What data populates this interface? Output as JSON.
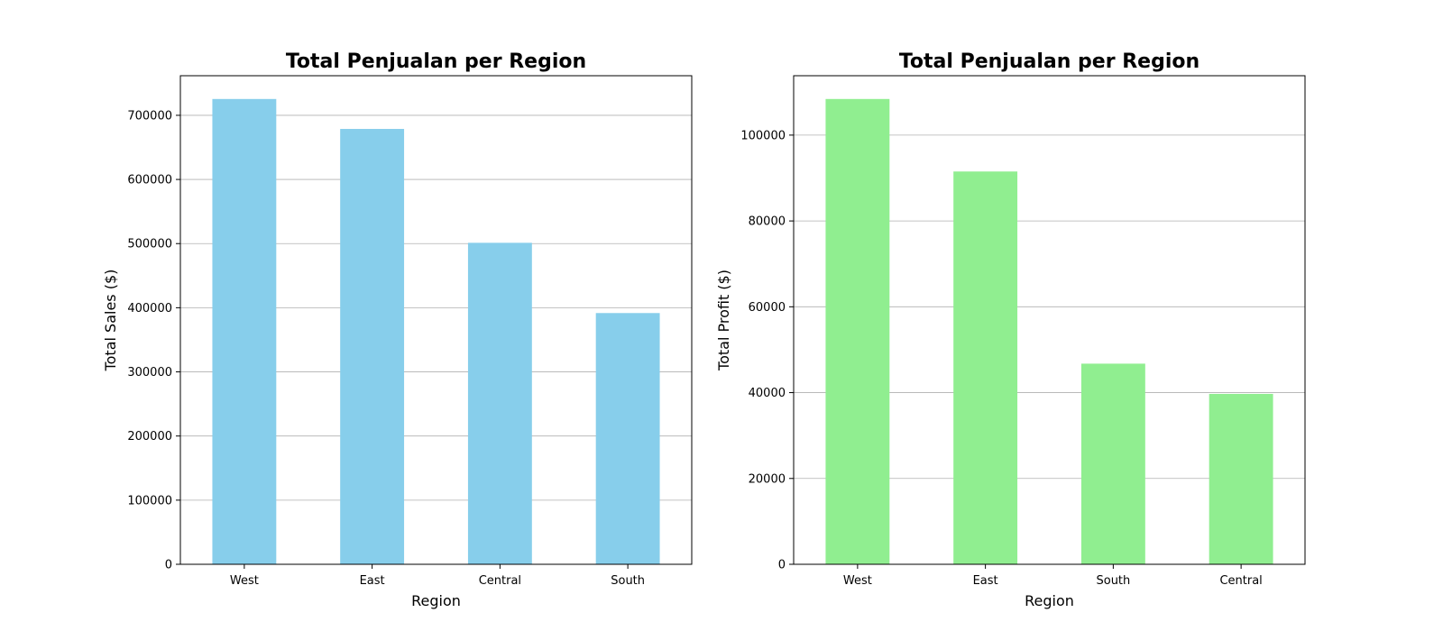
{
  "chart_data": [
    {
      "type": "bar",
      "title": "Total Penjualan per Region",
      "xlabel": "Region",
      "ylabel": "Total Sales ($)",
      "categories": [
        "West",
        "East",
        "Central",
        "South"
      ],
      "values": [
        725458,
        678781,
        501240,
        391722
      ],
      "ylim": [
        0,
        761731
      ],
      "yticks": [
        0,
        100000,
        200000,
        300000,
        400000,
        500000,
        600000,
        700000
      ],
      "grid": "y",
      "color": "#87ceeb"
    },
    {
      "type": "bar",
      "title": "Total Penjualan per Region",
      "xlabel": "Region",
      "ylabel": "Total Profit ($)",
      "categories": [
        "West",
        "East",
        "South",
        "Central"
      ],
      "values": [
        108418,
        91523,
        46750,
        39706
      ],
      "ylim": [
        0,
        113839
      ],
      "yticks": [
        0,
        20000,
        40000,
        60000,
        80000,
        100000
      ],
      "grid": "y",
      "color": "#90ee90"
    }
  ]
}
